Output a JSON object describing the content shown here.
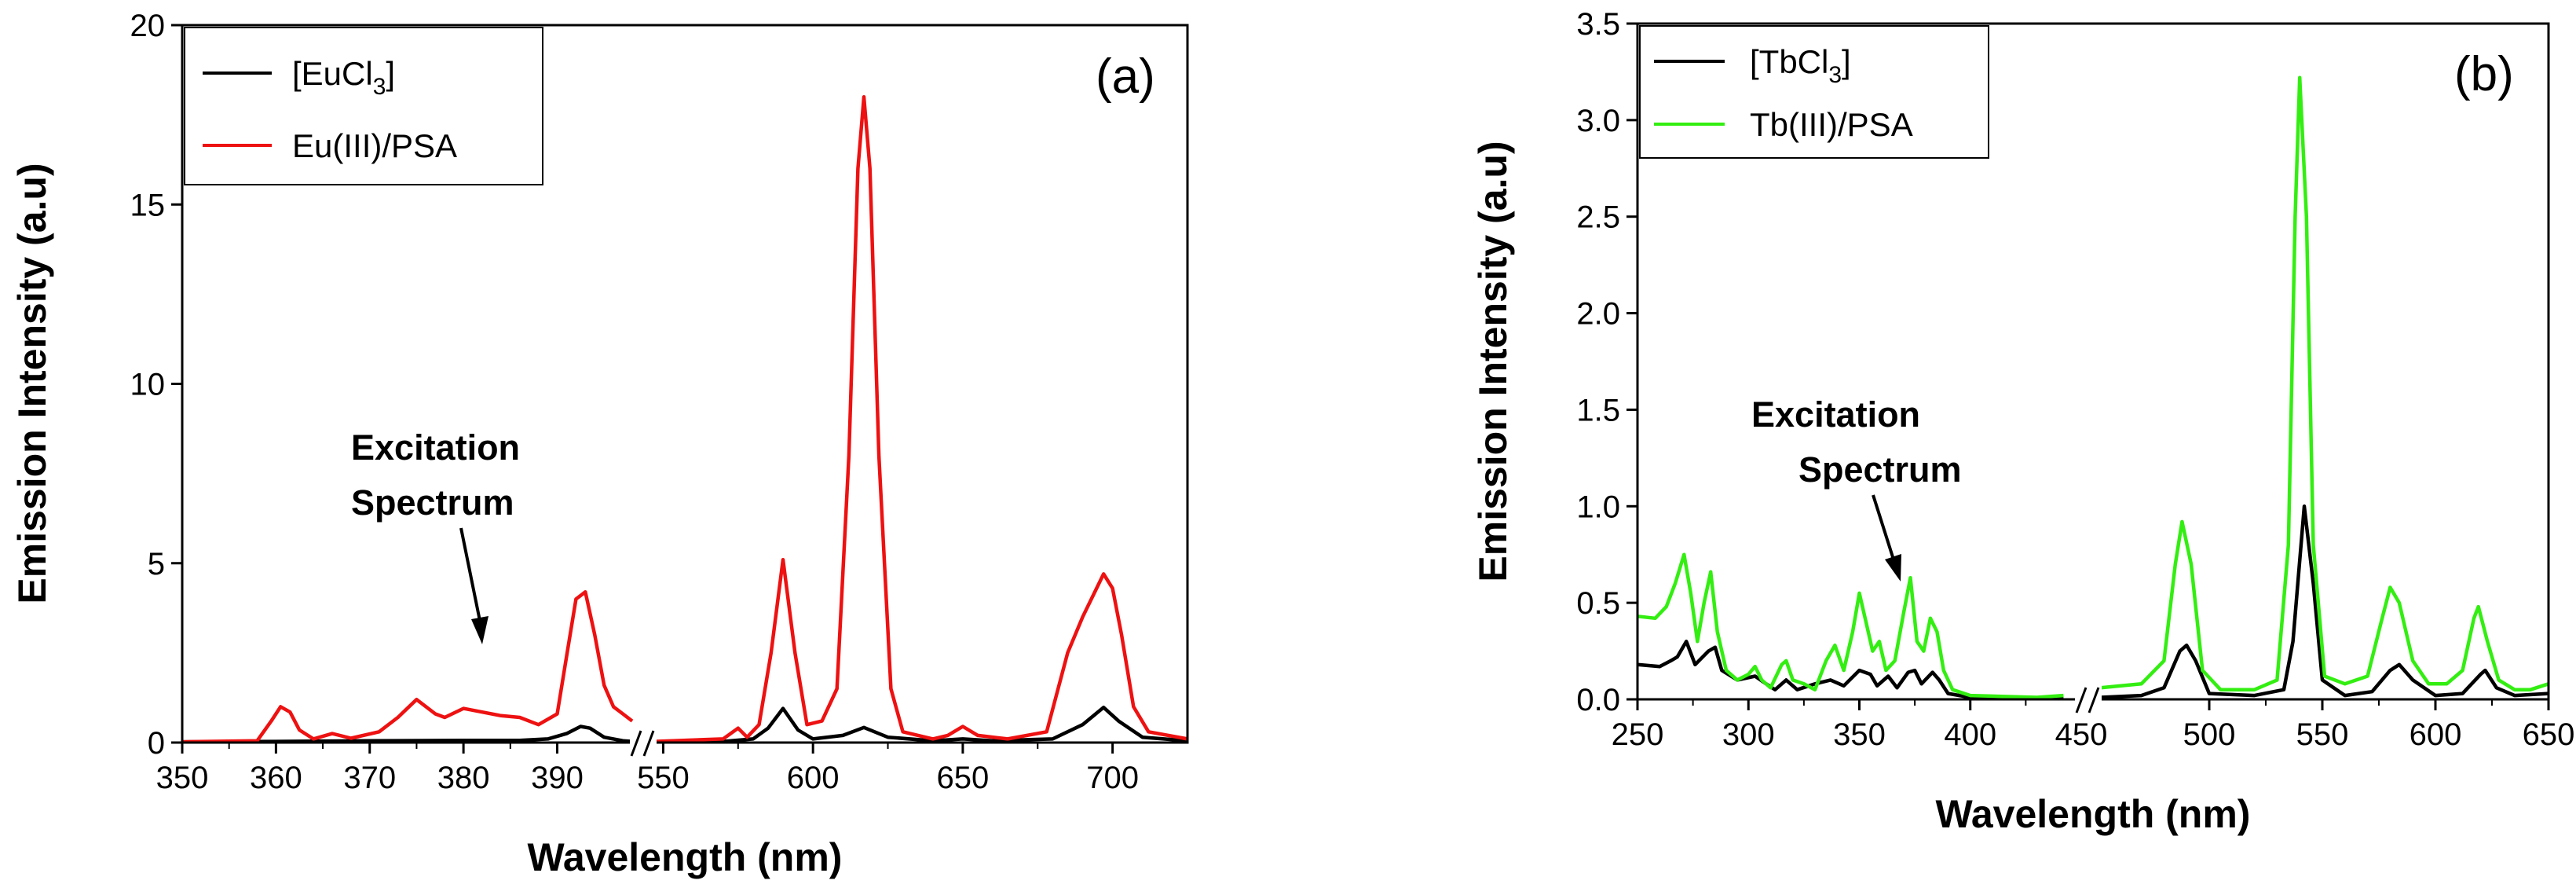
{
  "chart_data": [
    {
      "type": "line",
      "panel_label": "(a)",
      "xlabel": "Wavelength (nm)",
      "ylabel": "Emission Intensity (a.u)",
      "ylim": [
        0,
        20
      ],
      "yticks": [
        0,
        5,
        10,
        15,
        20
      ],
      "axis_break": true,
      "x_segments": [
        {
          "xlim": [
            350,
            398
          ],
          "ticks": [
            350,
            360,
            370,
            380,
            390
          ]
        },
        {
          "xlim": [
            547,
            725
          ],
          "ticks": [
            550,
            600,
            650,
            700
          ]
        }
      ],
      "annotation": {
        "lines": [
          "Excitation",
          "Spectrum"
        ]
      },
      "legend": {
        "placement": "top-left",
        "entries": [
          "[EuCl3]",
          "Eu(III)/PSA"
        ]
      },
      "series": [
        {
          "name": "[EuCl3]",
          "legend_main": "[EuCl",
          "legend_sub": "3",
          "legend_after": "]",
          "color": "#000000",
          "segments": [
            [
              [
                350,
                0.02
              ],
              [
                360,
                0.03
              ],
              [
                370,
                0.05
              ],
              [
                380,
                0.06
              ],
              [
                386,
                0.06
              ],
              [
                389,
                0.1
              ],
              [
                391,
                0.25
              ],
              [
                392.5,
                0.45
              ],
              [
                393.5,
                0.4
              ],
              [
                395,
                0.15
              ],
              [
                397,
                0.05
              ],
              [
                398,
                0.03
              ]
            ],
            [
              [
                547,
                0.02
              ],
              [
                570,
                0.03
              ],
              [
                580,
                0.1
              ],
              [
                585,
                0.4
              ],
              [
                590,
                0.95
              ],
              [
                595,
                0.35
              ],
              [
                600,
                0.1
              ],
              [
                610,
                0.2
              ],
              [
                617,
                0.42
              ],
              [
                625,
                0.15
              ],
              [
                640,
                0.05
              ],
              [
                650,
                0.1
              ],
              [
                660,
                0.05
              ],
              [
                680,
                0.1
              ],
              [
                690,
                0.5
              ],
              [
                697,
                0.98
              ],
              [
                702,
                0.6
              ],
              [
                710,
                0.15
              ],
              [
                725,
                0.05
              ]
            ]
          ]
        },
        {
          "name": "Eu(III)/PSA",
          "legend_main": "Eu(III)/PSA",
          "legend_sub": "",
          "legend_after": "",
          "color": "#ee1111",
          "segments": [
            [
              [
                350,
                0.02
              ],
              [
                358,
                0.05
              ],
              [
                359.5,
                0.6
              ],
              [
                360.5,
                1.0
              ],
              [
                361.5,
                0.85
              ],
              [
                362.5,
                0.35
              ],
              [
                364,
                0.1
              ],
              [
                366,
                0.25
              ],
              [
                368,
                0.12
              ],
              [
                371,
                0.3
              ],
              [
                373,
                0.7
              ],
              [
                375,
                1.2
              ],
              [
                377,
                0.8
              ],
              [
                378,
                0.7
              ],
              [
                380,
                0.95
              ],
              [
                382,
                0.85
              ],
              [
                384,
                0.75
              ],
              [
                386,
                0.7
              ],
              [
                388,
                0.5
              ],
              [
                390,
                0.8
              ],
              [
                391,
                2.4
              ],
              [
                392,
                4.0
              ],
              [
                393,
                4.2
              ],
              [
                394,
                3.0
              ],
              [
                395,
                1.6
              ],
              [
                396,
                1.0
              ],
              [
                397,
                0.8
              ],
              [
                398,
                0.6
              ]
            ],
            [
              [
                547,
                0.03
              ],
              [
                570,
                0.1
              ],
              [
                575,
                0.4
              ],
              [
                578,
                0.15
              ],
              [
                582,
                0.5
              ],
              [
                586,
                2.5
              ],
              [
                590,
                5.1
              ],
              [
                594,
                2.5
              ],
              [
                598,
                0.5
              ],
              [
                603,
                0.6
              ],
              [
                608,
                1.5
              ],
              [
                612,
                8
              ],
              [
                615,
                16
              ],
              [
                617,
                18
              ],
              [
                619,
                16
              ],
              [
                622,
                8
              ],
              [
                626,
                1.5
              ],
              [
                630,
                0.3
              ],
              [
                640,
                0.1
              ],
              [
                645,
                0.2
              ],
              [
                650,
                0.45
              ],
              [
                655,
                0.2
              ],
              [
                665,
                0.1
              ],
              [
                678,
                0.3
              ],
              [
                685,
                2.5
              ],
              [
                690,
                3.5
              ],
              [
                697,
                4.7
              ],
              [
                700,
                4.3
              ],
              [
                703,
                3.0
              ],
              [
                707,
                1.0
              ],
              [
                712,
                0.3
              ],
              [
                725,
                0.1
              ]
            ]
          ]
        }
      ]
    },
    {
      "type": "line",
      "panel_label": "(b)",
      "xlabel": "Wavelength (nm)",
      "ylabel": "Emission Intensity (a.u)",
      "ylim": [
        0,
        3.5
      ],
      "yticks": [
        0.0,
        0.5,
        1.0,
        1.5,
        2.0,
        2.5,
        3.0,
        3.5
      ],
      "axis_break": true,
      "x_segments": [
        {
          "xlim": [
            250,
            450
          ],
          "ticks": [
            250,
            300,
            350,
            400,
            450
          ]
        },
        {
          "xlim": [
            450,
            650
          ],
          "ticks": [
            500,
            550,
            600,
            650
          ]
        }
      ],
      "annotation": {
        "lines": [
          "Excitation",
          "Spectrum"
        ]
      },
      "legend": {
        "placement": "top-left",
        "entries": [
          "[TbCl3]",
          "Tb(III)/PSA"
        ]
      },
      "series": [
        {
          "name": "[TbCl3]",
          "legend_main": "[TbCl",
          "legend_sub": "3",
          "legend_after": "]",
          "color": "#000000",
          "segments": [
            [
              [
                250,
                0.18
              ],
              [
                260,
                0.17
              ],
              [
                265,
                0.2
              ],
              [
                268,
                0.22
              ],
              [
                272,
                0.3
              ],
              [
                276,
                0.18
              ],
              [
                282,
                0.25
              ],
              [
                285,
                0.27
              ],
              [
                288,
                0.15
              ],
              [
                295,
                0.1
              ],
              [
                303,
                0.12
              ],
              [
                308,
                0.08
              ],
              [
                312,
                0.05
              ],
              [
                317,
                0.1
              ],
              [
                322,
                0.05
              ],
              [
                330,
                0.08
              ],
              [
                337,
                0.1
              ],
              [
                343,
                0.07
              ],
              [
                350,
                0.15
              ],
              [
                355,
                0.13
              ],
              [
                358,
                0.07
              ],
              [
                363,
                0.12
              ],
              [
                367,
                0.06
              ],
              [
                372,
                0.14
              ],
              [
                375,
                0.15
              ],
              [
                378,
                0.08
              ],
              [
                383,
                0.14
              ],
              [
                386,
                0.1
              ],
              [
                390,
                0.03
              ],
              [
                400,
                0.01
              ],
              [
                430,
                0.005
              ],
              [
                442,
                0.01
              ]
            ],
            [
              [
                452,
                0.01
              ],
              [
                470,
                0.02
              ],
              [
                480,
                0.06
              ],
              [
                487,
                0.25
              ],
              [
                490,
                0.28
              ],
              [
                494,
                0.2
              ],
              [
                500,
                0.03
              ],
              [
                520,
                0.02
              ],
              [
                533,
                0.05
              ],
              [
                537,
                0.3
              ],
              [
                542,
                1.0
              ],
              [
                546,
                0.6
              ],
              [
                550,
                0.1
              ],
              [
                560,
                0.02
              ],
              [
                572,
                0.04
              ],
              [
                580,
                0.15
              ],
              [
                584,
                0.18
              ],
              [
                590,
                0.1
              ],
              [
                600,
                0.02
              ],
              [
                612,
                0.03
              ],
              [
                620,
                0.13
              ],
              [
                622,
                0.15
              ],
              [
                627,
                0.06
              ],
              [
                635,
                0.02
              ],
              [
                650,
                0.03
              ]
            ]
          ]
        },
        {
          "name": "Tb(III)/PSA",
          "legend_main": "Tb(III)/PSA",
          "legend_sub": "",
          "legend_after": "",
          "color": "#33ee11",
          "segments": [
            [
              [
                250,
                0.43
              ],
              [
                258,
                0.42
              ],
              [
                263,
                0.48
              ],
              [
                267,
                0.6
              ],
              [
                271,
                0.75
              ],
              [
                274,
                0.55
              ],
              [
                277,
                0.3
              ],
              [
                280,
                0.5
              ],
              [
                283,
                0.66
              ],
              [
                286,
                0.35
              ],
              [
                290,
                0.15
              ],
              [
                295,
                0.1
              ],
              [
                300,
                0.13
              ],
              [
                303,
                0.17
              ],
              [
                306,
                0.1
              ],
              [
                310,
                0.06
              ],
              [
                315,
                0.18
              ],
              [
                317,
                0.2
              ],
              [
                320,
                0.1
              ],
              [
                325,
                0.08
              ],
              [
                330,
                0.05
              ],
              [
                335,
                0.2
              ],
              [
                339,
                0.28
              ],
              [
                343,
                0.15
              ],
              [
                347,
                0.35
              ],
              [
                350,
                0.55
              ],
              [
                353,
                0.4
              ],
              [
                356,
                0.25
              ],
              [
                359,
                0.3
              ],
              [
                362,
                0.15
              ],
              [
                366,
                0.2
              ],
              [
                370,
                0.45
              ],
              [
                373,
                0.63
              ],
              [
                376,
                0.3
              ],
              [
                379,
                0.25
              ],
              [
                382,
                0.42
              ],
              [
                385,
                0.35
              ],
              [
                388,
                0.15
              ],
              [
                392,
                0.05
              ],
              [
                400,
                0.02
              ],
              [
                430,
                0.01
              ],
              [
                442,
                0.02
              ]
            ],
            [
              [
                452,
                0.06
              ],
              [
                470,
                0.08
              ],
              [
                480,
                0.2
              ],
              [
                485,
                0.7
              ],
              [
                488,
                0.92
              ],
              [
                492,
                0.7
              ],
              [
                497,
                0.15
              ],
              [
                505,
                0.05
              ],
              [
                520,
                0.05
              ],
              [
                530,
                0.1
              ],
              [
                535,
                0.8
              ],
              [
                538,
                2.5
              ],
              [
                540,
                3.22
              ],
              [
                543,
                2.5
              ],
              [
                546,
                0.8
              ],
              [
                551,
                0.12
              ],
              [
                560,
                0.08
              ],
              [
                570,
                0.12
              ],
              [
                576,
                0.4
              ],
              [
                580,
                0.58
              ],
              [
                584,
                0.5
              ],
              [
                590,
                0.2
              ],
              [
                597,
                0.08
              ],
              [
                605,
                0.08
              ],
              [
                612,
                0.15
              ],
              [
                617,
                0.42
              ],
              [
                619,
                0.48
              ],
              [
                623,
                0.3
              ],
              [
                628,
                0.1
              ],
              [
                635,
                0.05
              ],
              [
                642,
                0.05
              ],
              [
                650,
                0.08
              ]
            ]
          ]
        }
      ]
    }
  ]
}
